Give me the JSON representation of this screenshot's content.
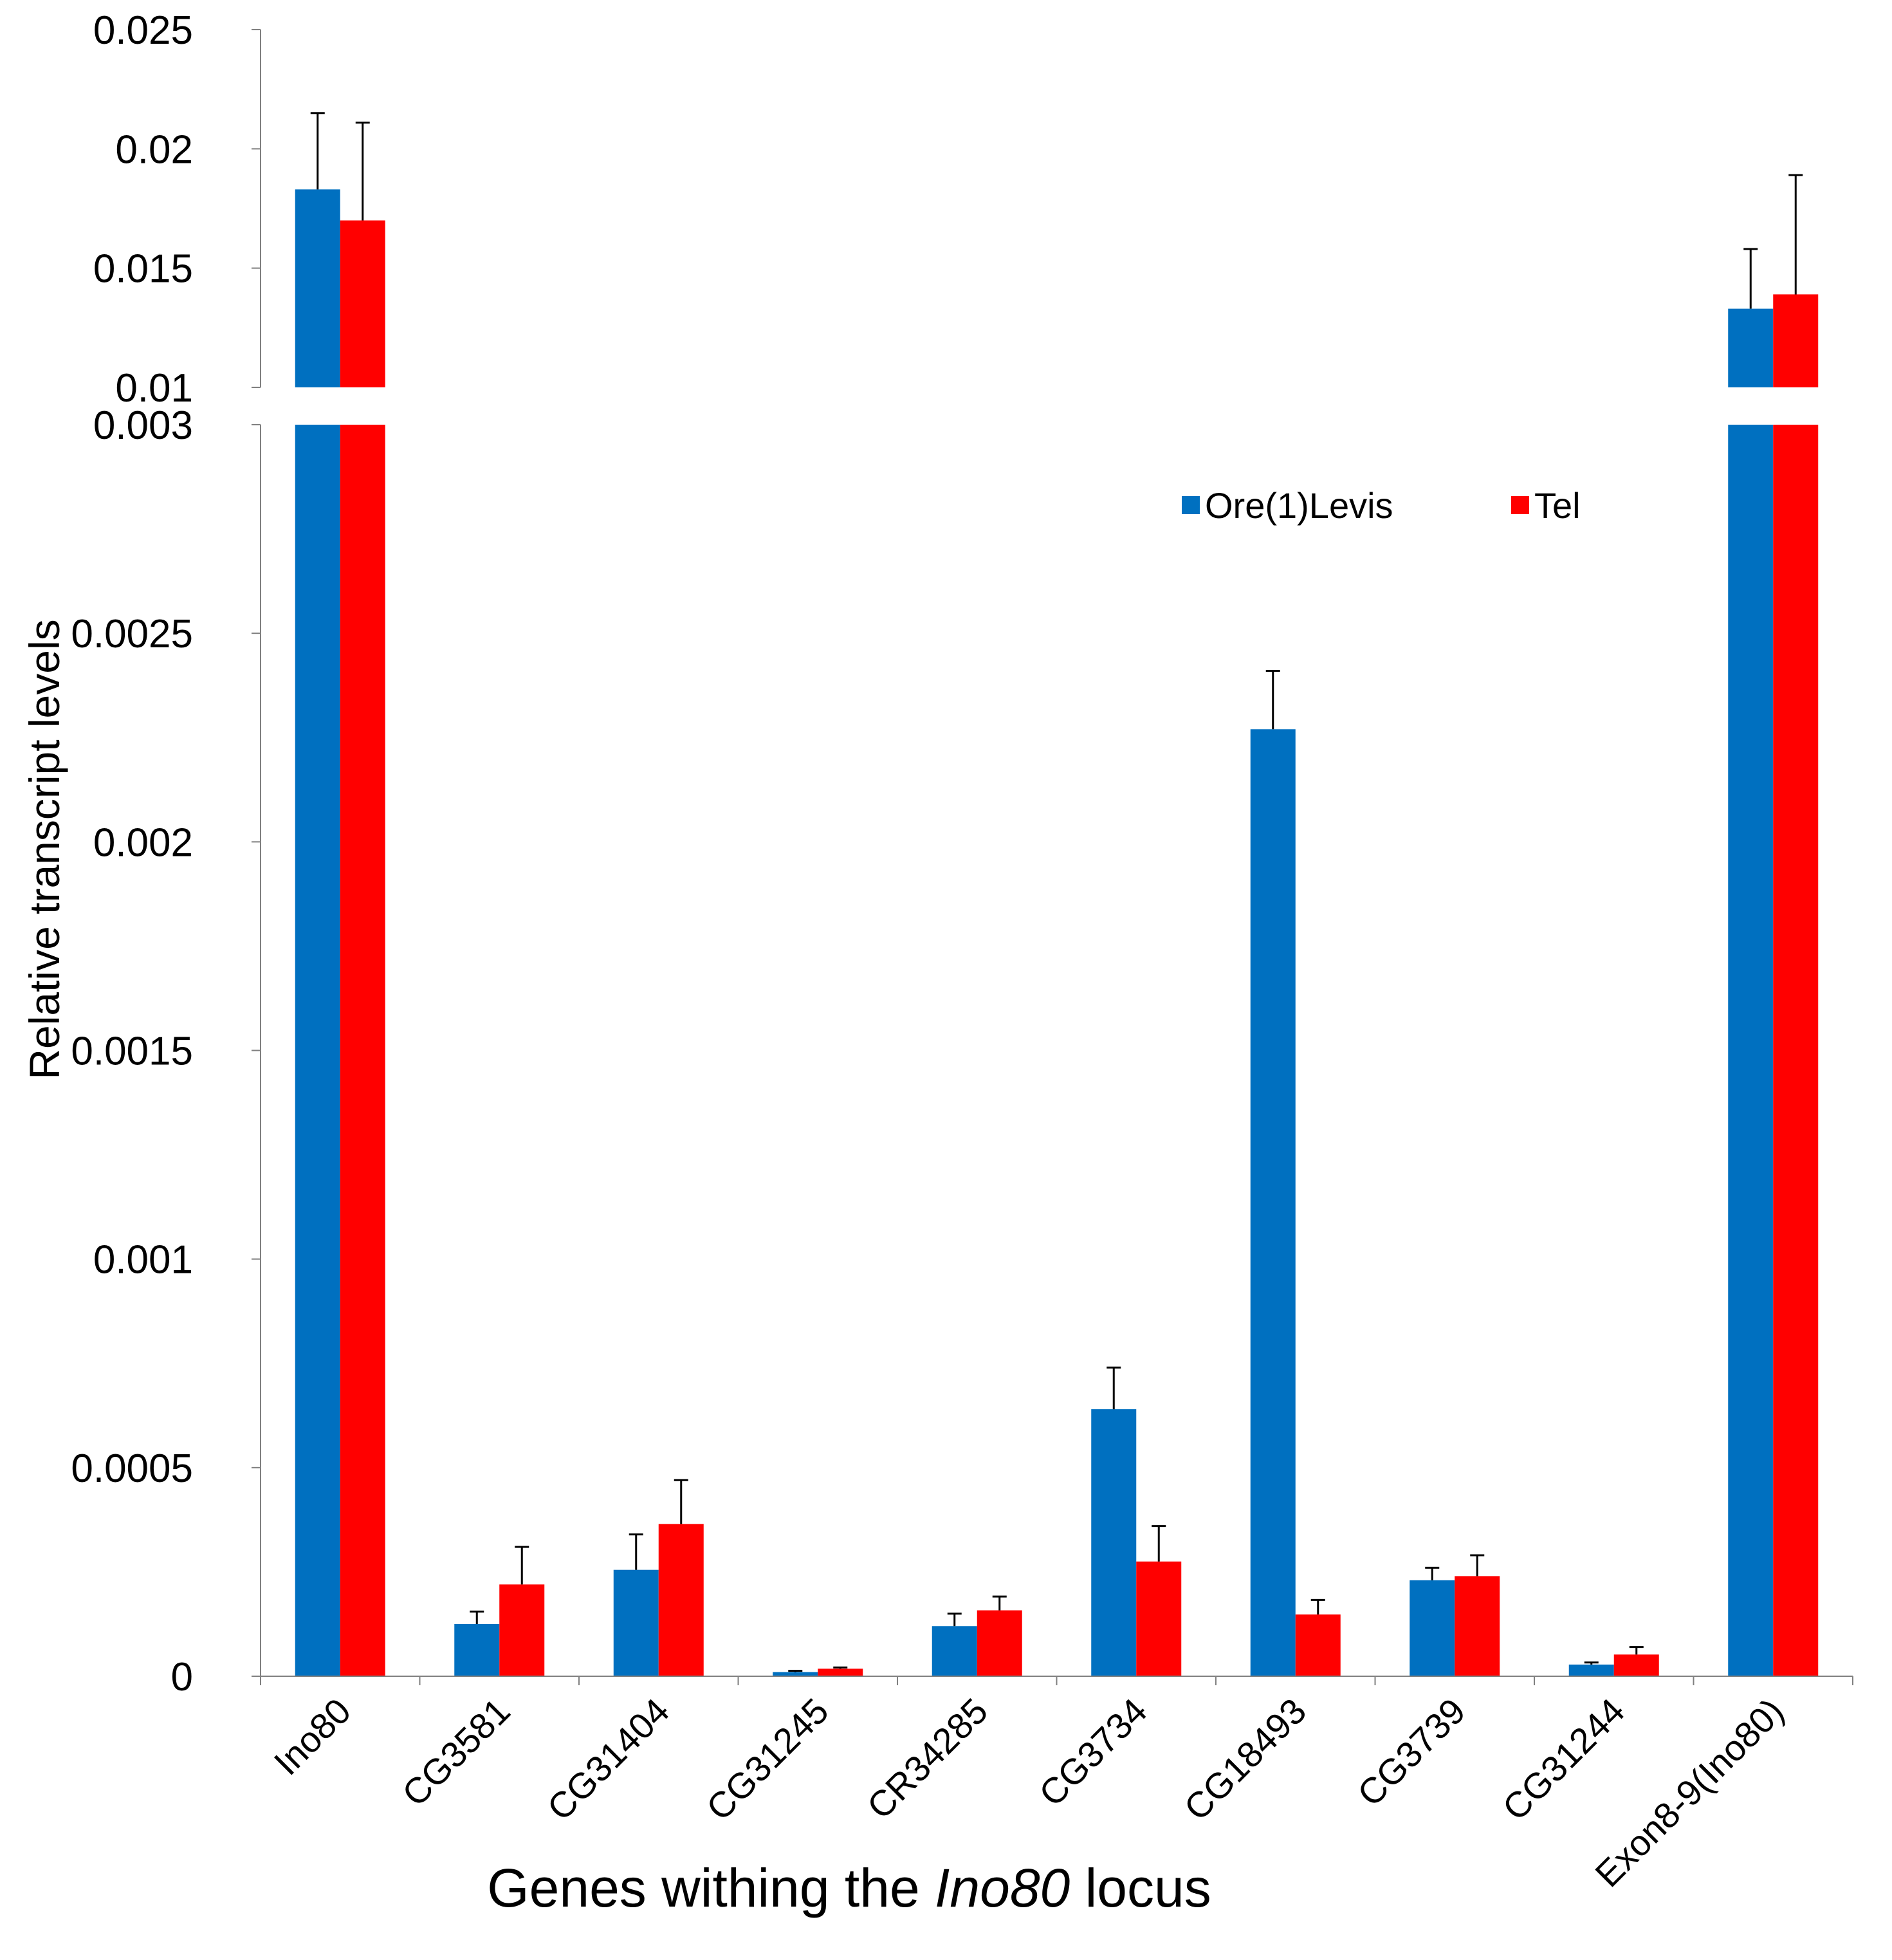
{
  "chart_data": {
    "type": "bar",
    "title": "",
    "xlabel_parts": [
      "Genes withing the ",
      "Ino80",
      " locus"
    ],
    "ylabel": "Relative transcript levels",
    "categories": [
      "Ino80",
      "CG3581",
      "CG31404",
      "CG31245",
      "CR34285",
      "CG3734",
      "CG18493",
      "CG3739",
      "CG31244",
      "Exon8-9(Ino80)"
    ],
    "series": [
      {
        "name": "Ore(1)Levis",
        "color": "#0070C0",
        "values": [
          0.0183,
          0.000125,
          0.000255,
          1e-05,
          0.00012,
          0.00064,
          0.00227,
          0.00023,
          2.8e-05,
          0.0133
        ],
        "errors": [
          0.0032,
          3e-05,
          8.5e-05,
          3e-06,
          3e-05,
          0.0001,
          0.00014,
          3e-05,
          5e-06,
          0.0025
        ]
      },
      {
        "name": "Tel",
        "color": "#FF0000",
        "values": [
          0.017,
          0.00022,
          0.000365,
          1.8e-05,
          0.000158,
          0.000275,
          0.000148,
          0.00024,
          5.2e-05,
          0.0139
        ],
        "errors": [
          0.0041,
          9e-05,
          0.000105,
          3e-06,
          3.3e-05,
          8.5e-05,
          3.5e-05,
          5e-05,
          1.8e-05,
          0.005
        ]
      }
    ],
    "axis_break": true,
    "lower_segment": {
      "ylim": [
        0,
        0.003
      ],
      "ticks": [
        0,
        0.0005,
        0.001,
        0.0015,
        0.002,
        0.0025,
        0.003
      ],
      "tick_labels": [
        "0",
        "0.0005",
        "0.001",
        "0.0015",
        "0.002",
        "0.0025",
        "0.003"
      ]
    },
    "upper_segment": {
      "ylim": [
        0.01,
        0.025
      ],
      "ticks": [
        0.01,
        0.015,
        0.02,
        0.025
      ],
      "tick_labels": [
        "0.01",
        "0.015",
        "0.02",
        "0.025"
      ]
    },
    "legend_position": "upper-right",
    "grid": false
  }
}
